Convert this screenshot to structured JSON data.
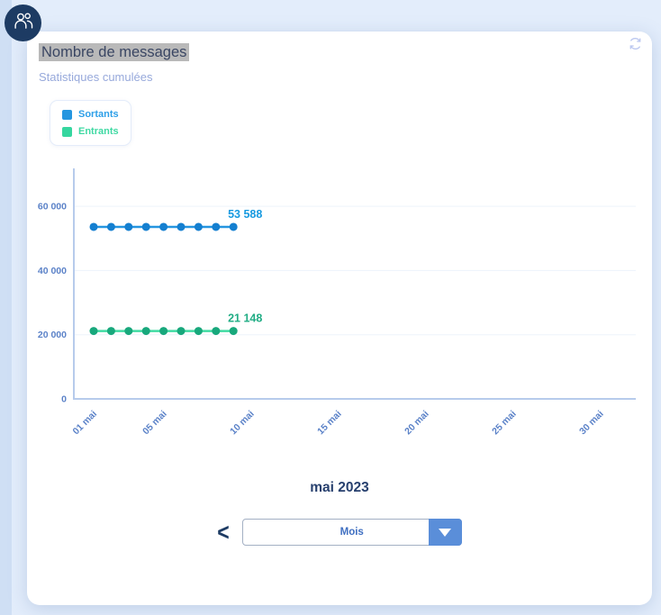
{
  "header": {
    "title": "Nombre de messages",
    "subtitle": "Statistiques cumulées"
  },
  "colors": {
    "page_bg": "#e3edfb",
    "card_bg": "#ffffff",
    "avatar_bg": "#1d3b63",
    "title_highlight": "#b9b9b9",
    "subtitle_text": "#97a9db",
    "axis": "#b7cbec",
    "tick_label": "#5b82c8",
    "sortants_line": "#2596e0",
    "sortants_dot": "#147fd0",
    "sortants_label": "#189ae0",
    "entrants_line": "#40dba2",
    "entrants_dot": "#18a87c",
    "entrants_label": "#21ad85",
    "period_text": "#27406e",
    "select_text": "#3f6fc1",
    "select_button": "#5a8ed9"
  },
  "legend": {
    "items": [
      {
        "label": "Sortants",
        "color": "#2596e0"
      },
      {
        "label": "Entrants",
        "color": "#35d69f"
      }
    ]
  },
  "chart_data": {
    "type": "line",
    "title": "Nombre de messages",
    "subtitle": "Statistiques cumulées",
    "x": [
      1,
      2,
      3,
      4,
      5,
      6,
      7,
      8,
      9
    ],
    "x_unit": "jour (mai 2023)",
    "series": [
      {
        "name": "Sortants",
        "values": [
          53588,
          53588,
          53588,
          53588,
          53588,
          53588,
          53588,
          53588,
          53588
        ],
        "end_label": "53 588",
        "line_color": "#2596e0",
        "dot_color": "#147fd0",
        "label_color": "#189ae0"
      },
      {
        "name": "Entrants",
        "values": [
          21148,
          21148,
          21148,
          21148,
          21148,
          21148,
          21148,
          21148,
          21148
        ],
        "end_label": "21 148",
        "line_color": "#40dba2",
        "dot_color": "#18a87c",
        "label_color": "#21ad85"
      }
    ],
    "xticks": [
      {
        "day": 1,
        "label": "01 mai"
      },
      {
        "day": 5,
        "label": "05 mai"
      },
      {
        "day": 10,
        "label": "10 mai"
      },
      {
        "day": 15,
        "label": "15 mai"
      },
      {
        "day": 20,
        "label": "20 mai"
      },
      {
        "day": 25,
        "label": "25 mai"
      },
      {
        "day": 30,
        "label": "30 mai"
      }
    ],
    "yticks": [
      {
        "value": 0,
        "label": "0"
      },
      {
        "value": 20000,
        "label": "20 000"
      },
      {
        "value": 40000,
        "label": "40 000"
      },
      {
        "value": 60000,
        "label": "60 000"
      }
    ],
    "ylim": [
      0,
      72000
    ],
    "x_domain": [
      1,
      32
    ],
    "grid": true,
    "legend_position": "top-left"
  },
  "footer": {
    "period_label": "mai 2023",
    "prev_symbol": "<",
    "granularity_value": "Mois"
  }
}
